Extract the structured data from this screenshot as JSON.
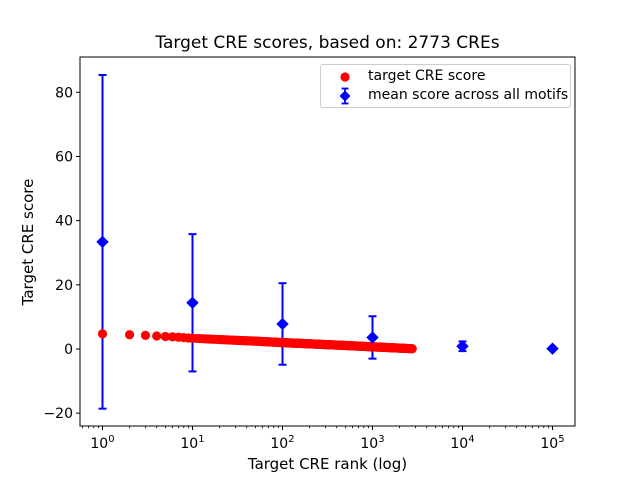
{
  "title": "Target CRE scores, based on: 2773 CREs",
  "axes": {
    "x": {
      "label": "Target CRE rank (log)",
      "scale": "log",
      "tick_base": 10,
      "tick_exponents": [
        0,
        1,
        2,
        3,
        4,
        5
      ],
      "log_min": -0.25,
      "log_max": 5.25
    },
    "y": {
      "label": "Target CRE score",
      "ticks": [
        -20,
        0,
        20,
        40,
        60,
        80
      ],
      "min": -24,
      "max": 91
    }
  },
  "legend": {
    "items": [
      {
        "label": "target CRE score",
        "marker": "circle",
        "color": "#ff0000"
      },
      {
        "label": "mean score across all motifs",
        "marker": "diamond-errorbar",
        "color": "#0000ff"
      }
    ]
  },
  "colors": {
    "red_series": "#ff0000",
    "blue_series": "#0000ff",
    "axis": "#000000",
    "legend_border": "#cccccc",
    "background": "#ffffff"
  },
  "chart_data": {
    "type": "scatter",
    "title": "Target CRE scores, based on: 2773 CREs",
    "xlabel": "Target CRE rank (log)",
    "ylabel": "Target CRE score",
    "x_scale": "log",
    "xlim_log10": [
      -0.25,
      5.25
    ],
    "ylim": [
      -24,
      91
    ],
    "grid": false,
    "legend_position": "upper right",
    "series": [
      {
        "name": "target CRE score",
        "type": "scatter",
        "marker": "circle",
        "color": "#ff0000",
        "n_points": 2773,
        "rank_range": [
          1,
          2773
        ],
        "note": "scores for integer ranks 1..2773, log-interpolated between sampled anchors",
        "anchors": [
          [
            1,
            4.7
          ],
          [
            2,
            4.45
          ],
          [
            3,
            4.25
          ],
          [
            4,
            4.05
          ],
          [
            5,
            3.9
          ],
          [
            7,
            3.65
          ],
          [
            10,
            3.35
          ],
          [
            20,
            2.95
          ],
          [
            30,
            2.72
          ],
          [
            50,
            2.45
          ],
          [
            100,
            2.0
          ],
          [
            200,
            1.62
          ],
          [
            300,
            1.38
          ],
          [
            500,
            1.1
          ],
          [
            1000,
            0.68
          ],
          [
            2000,
            0.28
          ],
          [
            2773,
            0.08
          ]
        ]
      },
      {
        "name": "mean score across all motifs",
        "type": "errorbar",
        "marker": "diamond",
        "color": "#0000ff",
        "x": [
          1,
          10,
          100,
          1000,
          10000,
          100000
        ],
        "y": [
          33.4,
          14.4,
          7.8,
          3.6,
          0.85,
          0.1
        ],
        "yerr": [
          52,
          21.4,
          12.7,
          6.6,
          1.5,
          0.35
        ]
      }
    ]
  }
}
